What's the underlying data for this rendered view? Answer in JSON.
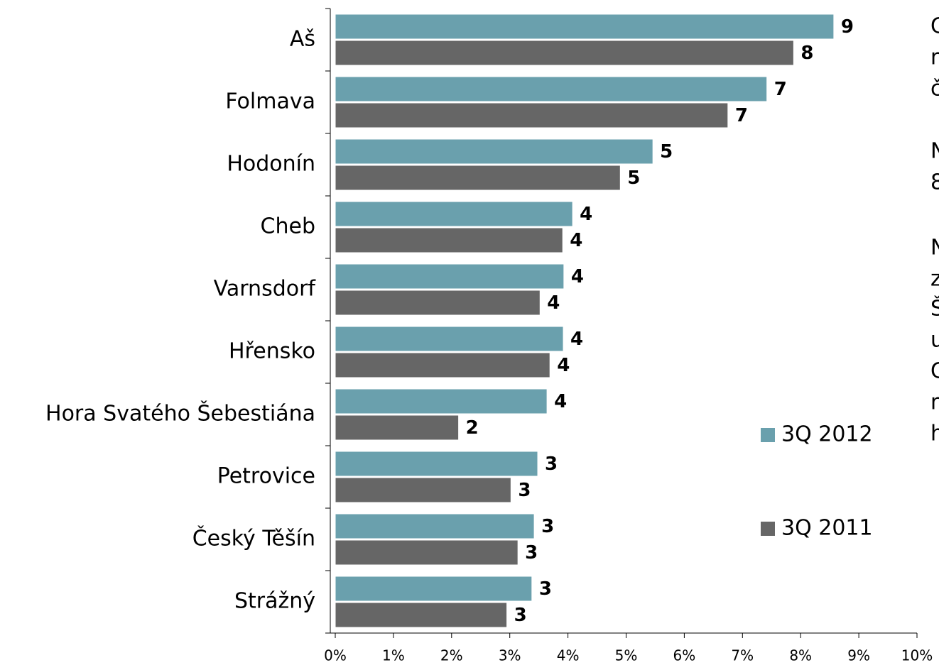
{
  "chart_data": {
    "type": "barh",
    "categories": [
      "Aš",
      "Folmava",
      "Hodonín",
      "Cheb",
      "Varnsdorf",
      "Hřensko",
      "Hora Svatého Šebestiána",
      "Petrovice",
      "Český Těšín",
      "Strážný"
    ],
    "series": [
      {
        "name": "3Q 2012",
        "color": "#6aa0ad",
        "values": [
          8.57,
          7.42,
          5.46,
          4.08,
          3.93,
          3.92,
          3.64,
          3.48,
          3.42,
          3.38
        ],
        "value_labels": [
          "9",
          "7",
          "5",
          "4",
          "4",
          "4",
          "4",
          "3",
          "3",
          "3"
        ]
      },
      {
        "name": "3Q 2011",
        "color": "#666666",
        "values": [
          7.88,
          6.75,
          4.9,
          3.91,
          3.52,
          3.69,
          2.12,
          3.02,
          3.14,
          2.95
        ],
        "value_labels": [
          "8",
          "7",
          "5",
          "4",
          "4",
          "4",
          "2",
          "3",
          "3",
          "3"
        ]
      }
    ],
    "xlim": [
      0,
      10
    ],
    "xticks": [
      {
        "value": 0,
        "label": "0%"
      },
      {
        "value": 1,
        "label": "1%"
      },
      {
        "value": 2,
        "label": "2%"
      },
      {
        "value": 3,
        "label": "3%"
      },
      {
        "value": 4,
        "label": "4%"
      },
      {
        "value": 5,
        "label": "5%"
      },
      {
        "value": 6,
        "label": "6%"
      },
      {
        "value": 7,
        "label": "7%"
      },
      {
        "value": 8,
        "label": "8%"
      },
      {
        "value": 9,
        "label": "9%"
      },
      {
        "value": 10,
        "label": "10%"
      }
    ],
    "side_text": [
      "C",
      "n",
      "č",
      "N",
      "8",
      "N",
      "z",
      "Š",
      "u",
      "C",
      "n",
      "h"
    ]
  }
}
